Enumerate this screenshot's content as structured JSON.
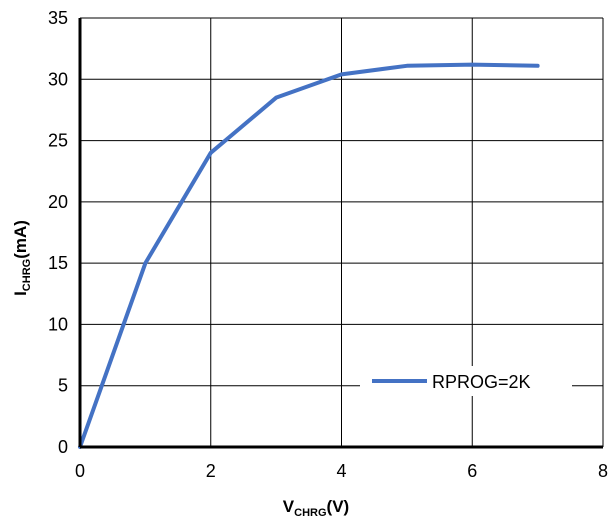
{
  "chart_data": {
    "type": "line",
    "xlabel": {
      "main": "V",
      "sub": "CHRG",
      "unit": "(V)"
    },
    "ylabel": {
      "main": "I",
      "sub": "CHRG",
      "unit": "(mA)"
    },
    "xlim": [
      0,
      8
    ],
    "ylim": [
      0,
      35
    ],
    "xticks": [
      0,
      2,
      4,
      6,
      8
    ],
    "yticks": [
      0,
      5,
      10,
      15,
      20,
      25,
      30,
      35
    ],
    "grid": true,
    "legend_position": "bottom-right",
    "series": [
      {
        "name": "RPROG=2K",
        "color": "#4472C4",
        "x": [
          0,
          1,
          2,
          3,
          4,
          5,
          6,
          7
        ],
        "y": [
          0,
          15,
          24,
          28.5,
          30.4,
          31.1,
          31.2,
          31.1
        ]
      }
    ]
  }
}
